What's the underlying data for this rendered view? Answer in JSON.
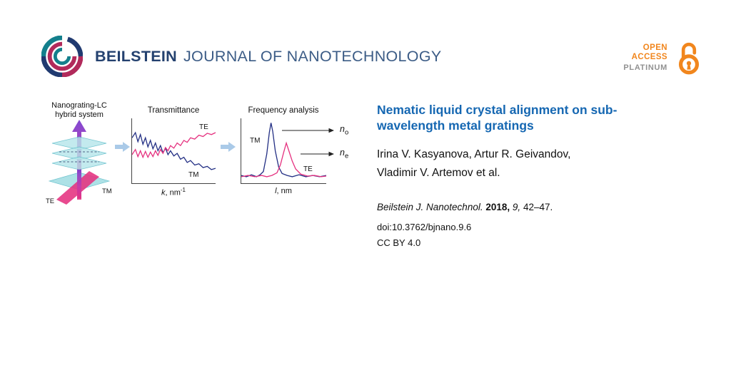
{
  "colors": {
    "brand_navy": "#24416f",
    "brand_blue_light": "#3c5c86",
    "title_blue": "#1567b2",
    "oa_orange": "#f1861d",
    "platinum_gray": "#919191",
    "curve_navy": "#232f84",
    "curve_magenta": "#e5317f",
    "figure_teal": "#9fdce2",
    "arrow_blue": "#aacae8"
  },
  "header": {
    "journal_bold": "BEILSTEIN",
    "journal_rest": "JOURNAL OF NANOTECHNOLOGY",
    "open_access": {
      "open": "OPEN",
      "access": "ACCESS",
      "platinum": "PLATINUM"
    }
  },
  "figure": {
    "panel1": {
      "label_line1": "Nanograting-LC",
      "label_line2": "hybrid system",
      "te": "TE",
      "tm": "TM"
    },
    "panel2": {
      "xlabel_var": "k",
      "xlabel_rest": ", nm",
      "xlabel_sup": "-1"
    },
    "panel3": {
      "xlabel_var": "l",
      "xlabel_rest": ", nm",
      "n_o": {
        "main": "n",
        "sub": "o"
      },
      "n_e": {
        "main": "n",
        "sub": "e"
      }
    }
  },
  "chart_data": [
    {
      "type": "line",
      "title": "Transmittance",
      "xlabel": "k, nm^-1",
      "ylabel": "",
      "grid": false,
      "series": [
        {
          "name": "TM",
          "color": "#232f84",
          "points": [
            [
              0,
              0.3
            ],
            [
              0.04,
              0.22
            ],
            [
              0.07,
              0.36
            ],
            [
              0.1,
              0.25
            ],
            [
              0.13,
              0.4
            ],
            [
              0.16,
              0.3
            ],
            [
              0.19,
              0.44
            ],
            [
              0.22,
              0.34
            ],
            [
              0.25,
              0.47
            ],
            [
              0.28,
              0.38
            ],
            [
              0.31,
              0.5
            ],
            [
              0.34,
              0.42
            ],
            [
              0.37,
              0.53
            ],
            [
              0.4,
              0.46
            ],
            [
              0.43,
              0.56
            ],
            [
              0.46,
              0.5
            ],
            [
              0.5,
              0.58
            ],
            [
              0.54,
              0.54
            ],
            [
              0.58,
              0.63
            ],
            [
              0.62,
              0.6
            ],
            [
              0.66,
              0.68
            ],
            [
              0.7,
              0.65
            ],
            [
              0.75,
              0.72
            ],
            [
              0.8,
              0.7
            ],
            [
              0.85,
              0.76
            ],
            [
              0.9,
              0.74
            ],
            [
              0.95,
              0.79
            ],
            [
              1,
              0.77
            ]
          ]
        },
        {
          "name": "TE",
          "color": "#e5317f",
          "points": [
            [
              0,
              0.56
            ],
            [
              0.04,
              0.48
            ],
            [
              0.07,
              0.59
            ],
            [
              0.1,
              0.5
            ],
            [
              0.13,
              0.6
            ],
            [
              0.16,
              0.51
            ],
            [
              0.19,
              0.6
            ],
            [
              0.22,
              0.52
            ],
            [
              0.25,
              0.59
            ],
            [
              0.28,
              0.5
            ],
            [
              0.31,
              0.57
            ],
            [
              0.34,
              0.48
            ],
            [
              0.37,
              0.54
            ],
            [
              0.4,
              0.45
            ],
            [
              0.43,
              0.5
            ],
            [
              0.46,
              0.42
            ],
            [
              0.5,
              0.46
            ],
            [
              0.54,
              0.38
            ],
            [
              0.58,
              0.42
            ],
            [
              0.62,
              0.34
            ],
            [
              0.66,
              0.37
            ],
            [
              0.7,
              0.3
            ],
            [
              0.75,
              0.32
            ],
            [
              0.8,
              0.26
            ],
            [
              0.85,
              0.28
            ],
            [
              0.9,
              0.23
            ],
            [
              0.95,
              0.25
            ],
            [
              1,
              0.22
            ]
          ]
        }
      ]
    },
    {
      "type": "line",
      "title": "Frequency analysis",
      "xlabel": "l, nm",
      "ylabel": "",
      "grid": false,
      "series": [
        {
          "name": "TM",
          "color": "#232f84",
          "points": [
            [
              0,
              0.88
            ],
            [
              0.06,
              0.9
            ],
            [
              0.12,
              0.87
            ],
            [
              0.18,
              0.9
            ],
            [
              0.22,
              0.87
            ],
            [
              0.26,
              0.82
            ],
            [
              0.3,
              0.55
            ],
            [
              0.33,
              0.22
            ],
            [
              0.35,
              0.07
            ],
            [
              0.37,
              0.2
            ],
            [
              0.4,
              0.5
            ],
            [
              0.44,
              0.75
            ],
            [
              0.48,
              0.85
            ],
            [
              0.54,
              0.88
            ],
            [
              0.6,
              0.9
            ],
            [
              0.68,
              0.87
            ],
            [
              0.76,
              0.9
            ],
            [
              0.84,
              0.88
            ],
            [
              0.92,
              0.9
            ],
            [
              1,
              0.88
            ]
          ]
        },
        {
          "name": "TE",
          "color": "#e5317f",
          "points": [
            [
              0,
              0.9
            ],
            [
              0.08,
              0.88
            ],
            [
              0.16,
              0.9
            ],
            [
              0.24,
              0.88
            ],
            [
              0.3,
              0.9
            ],
            [
              0.36,
              0.88
            ],
            [
              0.42,
              0.84
            ],
            [
              0.46,
              0.72
            ],
            [
              0.5,
              0.52
            ],
            [
              0.53,
              0.38
            ],
            [
              0.56,
              0.5
            ],
            [
              0.6,
              0.66
            ],
            [
              0.64,
              0.78
            ],
            [
              0.7,
              0.86
            ],
            [
              0.78,
              0.89
            ],
            [
              0.86,
              0.88
            ],
            [
              0.94,
              0.9
            ],
            [
              1,
              0.89
            ]
          ]
        }
      ],
      "annotations": [
        {
          "target": "TM peak",
          "label": "n_o"
        },
        {
          "target": "TE peak",
          "label": "n_e"
        }
      ]
    }
  ],
  "article": {
    "title_line1": "Nematic liquid crystal alignment on sub-",
    "title_line2": "wavelength metal gratings",
    "authors_line1": "Irina V. Kasyanova, Artur R. Geivandov,",
    "authors_line2": "Vladimir V. Artemov et al.",
    "citation": {
      "journal": "Beilstein J. Nanotechnol.",
      "year": "2018,",
      "volume": "9,",
      "pages": "42–47."
    },
    "doi": "doi:10.3762/bjnano.9.6",
    "license": "CC BY 4.0"
  }
}
